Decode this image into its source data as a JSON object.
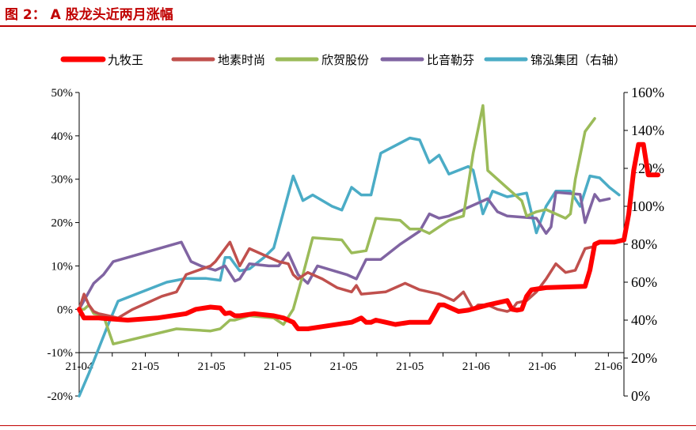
{
  "figure_title": "图 2：  A 股龙头近两月涨幅",
  "chart_data": {
    "type": "line",
    "x_tick_labels": [
      "21-04",
      "21-05",
      "21-05",
      "21-05",
      "21-05",
      "21-05",
      "21-06",
      "21-06",
      "21-06"
    ],
    "y_left_ticks": [
      "50%",
      "40%",
      "30%",
      "20%",
      "10%",
      "0%",
      "-10%",
      "-20%"
    ],
    "y_right_ticks": [
      "160%",
      "140%",
      "120%",
      "100%",
      "80%",
      "60%",
      "40%",
      "20%",
      "0%"
    ],
    "ylim_left": [
      -20,
      50
    ],
    "ylim_right": [
      0,
      160
    ],
    "legend_position": "top",
    "series": [
      {
        "name": "九牧王",
        "axis": "left",
        "color": "#ff0000",
        "values": [
          [
            0,
            0
          ],
          [
            1,
            -2
          ],
          [
            4,
            -2
          ],
          [
            10,
            -2.5
          ],
          [
            16,
            -2
          ],
          [
            22,
            -1
          ],
          [
            24,
            0
          ],
          [
            27,
            0.5
          ],
          [
            29,
            0.3
          ],
          [
            30,
            -1
          ],
          [
            31,
            -0.8
          ],
          [
            32,
            -1.5
          ],
          [
            33,
            -1.5
          ],
          [
            36,
            -1
          ],
          [
            40,
            -1.5
          ],
          [
            42,
            -2
          ],
          [
            43,
            -2.5
          ],
          [
            44,
            -3
          ],
          [
            45,
            -4.5
          ],
          [
            47,
            -4.5
          ],
          [
            50,
            -4
          ],
          [
            56,
            -3
          ],
          [
            58,
            -2
          ],
          [
            59,
            -3
          ],
          [
            60,
            -3
          ],
          [
            61,
            -2.5
          ],
          [
            63,
            -3
          ],
          [
            65,
            -3.5
          ],
          [
            68,
            -3
          ],
          [
            72,
            -3
          ],
          [
            73,
            -1
          ],
          [
            74,
            1
          ],
          [
            75,
            1
          ],
          [
            77,
            0
          ],
          [
            78,
            -0.5
          ],
          [
            80,
            -0.2
          ],
          [
            84,
            1
          ],
          [
            86,
            1.5
          ],
          [
            88,
            2
          ],
          [
            89,
            0
          ],
          [
            90,
            -0.2
          ],
          [
            91,
            0
          ],
          [
            92,
            3
          ],
          [
            93,
            4.5
          ],
          [
            96,
            5
          ],
          [
            104,
            5.3
          ],
          [
            105,
            9
          ],
          [
            106,
            15
          ],
          [
            107,
            15.5
          ],
          [
            110,
            15.5
          ],
          [
            112,
            16
          ],
          [
            113,
            22
          ],
          [
            114,
            32
          ],
          [
            115,
            38
          ],
          [
            116,
            38
          ],
          [
            117,
            31
          ],
          [
            119,
            31
          ]
        ]
      },
      {
        "name": "地素时尚",
        "axis": "left",
        "color": "#c0504d",
        "values": [
          [
            0,
            0
          ],
          [
            1,
            3.5
          ],
          [
            2,
            1
          ],
          [
            3,
            -0.5
          ],
          [
            4,
            -1
          ],
          [
            6,
            -1.5
          ],
          [
            8,
            -2
          ],
          [
            11,
            0
          ],
          [
            14,
            1.5
          ],
          [
            17,
            3
          ],
          [
            20,
            4
          ],
          [
            22,
            8
          ],
          [
            27,
            10
          ],
          [
            28,
            11
          ],
          [
            31,
            15.5
          ],
          [
            33,
            10
          ],
          [
            35,
            14
          ],
          [
            39,
            12
          ],
          [
            41,
            11
          ],
          [
            43,
            10.5
          ],
          [
            44,
            8
          ],
          [
            45,
            7
          ],
          [
            47,
            8.5
          ],
          [
            50,
            7
          ],
          [
            53,
            5
          ],
          [
            56,
            4
          ],
          [
            57,
            5.5
          ],
          [
            58,
            3.5
          ],
          [
            63,
            4
          ],
          [
            65,
            5
          ],
          [
            67,
            6
          ],
          [
            69,
            5
          ],
          [
            70,
            4.5
          ],
          [
            72,
            4
          ],
          [
            74,
            3.5
          ],
          [
            75,
            3
          ],
          [
            77,
            2
          ],
          [
            79,
            4
          ],
          [
            81,
            0
          ],
          [
            82,
            1
          ],
          [
            84,
            1
          ],
          [
            86,
            0
          ],
          [
            88,
            -0.5
          ],
          [
            89,
            0
          ],
          [
            90,
            1.5
          ],
          [
            92,
            2
          ],
          [
            94,
            4
          ],
          [
            96,
            7
          ],
          [
            98,
            10.5
          ],
          [
            100,
            8.5
          ],
          [
            102,
            9
          ],
          [
            104,
            14
          ],
          [
            106,
            14.5
          ]
        ]
      },
      {
        "name": "欣贺股份",
        "axis": "left",
        "color": "#9bbb59",
        "values": [
          [
            0,
            0
          ],
          [
            1,
            0
          ],
          [
            2,
            1
          ],
          [
            3,
            -1
          ],
          [
            5,
            -1.5
          ],
          [
            7,
            -8
          ],
          [
            20,
            -4.5
          ],
          [
            27,
            -5
          ],
          [
            29,
            -4.5
          ],
          [
            31,
            -2.5
          ],
          [
            32,
            -2.5
          ],
          [
            35,
            -1.5
          ],
          [
            40,
            -2
          ],
          [
            42,
            -3.5
          ],
          [
            44,
            0
          ],
          [
            46,
            8
          ],
          [
            48,
            16.5
          ],
          [
            54,
            16
          ],
          [
            56,
            13
          ],
          [
            59,
            13.5
          ],
          [
            61,
            21
          ],
          [
            66,
            20.5
          ],
          [
            68,
            18.5
          ],
          [
            70,
            18.5
          ],
          [
            72,
            17.5
          ],
          [
            76,
            20.5
          ],
          [
            79,
            21.5
          ],
          [
            81,
            36
          ],
          [
            83,
            47
          ],
          [
            84,
            32
          ],
          [
            89,
            27
          ],
          [
            91,
            25
          ],
          [
            92,
            21.5
          ],
          [
            94,
            22.5
          ],
          [
            96,
            23
          ],
          [
            100,
            21
          ],
          [
            101,
            22
          ],
          [
            102,
            30
          ],
          [
            104,
            41
          ],
          [
            106,
            44
          ]
        ]
      },
      {
        "name": "比音勒芬",
        "axis": "left",
        "color": "#8064a2",
        "values": [
          [
            0,
            0
          ],
          [
            1,
            2
          ],
          [
            3,
            6
          ],
          [
            5,
            8
          ],
          [
            7,
            11
          ],
          [
            21,
            15.5
          ],
          [
            23,
            11
          ],
          [
            25,
            10
          ],
          [
            28,
            9
          ],
          [
            30,
            10
          ],
          [
            32,
            6.5
          ],
          [
            33,
            7
          ],
          [
            35,
            10.5
          ],
          [
            39,
            10
          ],
          [
            41,
            10
          ],
          [
            43,
            13
          ],
          [
            45,
            8
          ],
          [
            47,
            6
          ],
          [
            49,
            10
          ],
          [
            52,
            9
          ],
          [
            55,
            8
          ],
          [
            57,
            7
          ],
          [
            59,
            11.5
          ],
          [
            62,
            11.5
          ],
          [
            66,
            15
          ],
          [
            70,
            18
          ],
          [
            72,
            22
          ],
          [
            74,
            21
          ],
          [
            76,
            21.5
          ],
          [
            83,
            25
          ],
          [
            84,
            25.5
          ],
          [
            86,
            22.5
          ],
          [
            88,
            21.5
          ],
          [
            94,
            21
          ],
          [
            96,
            17.5
          ],
          [
            97,
            19
          ],
          [
            98,
            27
          ],
          [
            103,
            26.5
          ],
          [
            104,
            20
          ],
          [
            106,
            26.5
          ],
          [
            107,
            25
          ],
          [
            109,
            25.5
          ]
        ]
      },
      {
        "name": "锦泓集团（右轴）",
        "axis": "right",
        "color": "#4bacc6",
        "values": [
          [
            0,
            0
          ],
          [
            2,
            12
          ],
          [
            4,
            25
          ],
          [
            6,
            38
          ],
          [
            8,
            50
          ],
          [
            12,
            54
          ],
          [
            18,
            60
          ],
          [
            20,
            61
          ],
          [
            22,
            62
          ],
          [
            26,
            62
          ],
          [
            29,
            61
          ],
          [
            30,
            73
          ],
          [
            31,
            73
          ],
          [
            33,
            66
          ],
          [
            35,
            67
          ],
          [
            38,
            73
          ],
          [
            40,
            78
          ],
          [
            42,
            97
          ],
          [
            44,
            116
          ],
          [
            46,
            103
          ],
          [
            48,
            106
          ],
          [
            52,
            100
          ],
          [
            54,
            98
          ],
          [
            56,
            110
          ],
          [
            58,
            106
          ],
          [
            60,
            106
          ],
          [
            62,
            128
          ],
          [
            68,
            136
          ],
          [
            70,
            135
          ],
          [
            72,
            123
          ],
          [
            74,
            127
          ],
          [
            76,
            117
          ],
          [
            80,
            121
          ],
          [
            81,
            119
          ],
          [
            83,
            96
          ],
          [
            85,
            108
          ],
          [
            88,
            105
          ],
          [
            92,
            107
          ],
          [
            94,
            86
          ],
          [
            96,
            100
          ],
          [
            98,
            108
          ],
          [
            101,
            108
          ],
          [
            103,
            100
          ],
          [
            105,
            116
          ],
          [
            107,
            115
          ],
          [
            109,
            110
          ],
          [
            111,
            106
          ]
        ]
      }
    ]
  }
}
